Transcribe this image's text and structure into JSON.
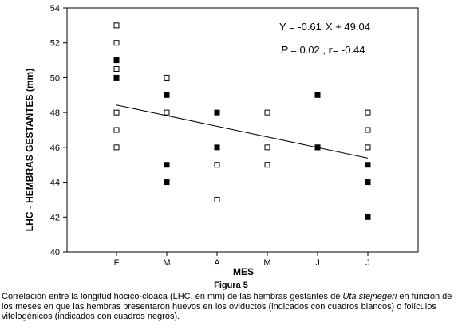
{
  "chart_data": {
    "type": "scatter",
    "title": "",
    "xlabel": "MES",
    "ylabel": "LHC - HEMBRAS GESTANTES (mm)",
    "categories": [
      "F",
      "M",
      "A",
      "M",
      "J",
      "J"
    ],
    "ylim": [
      40,
      54
    ],
    "yticks": [
      40,
      42,
      44,
      46,
      48,
      50,
      52,
      54
    ],
    "legend": "none",
    "series": [
      {
        "marker": "open-square",
        "points": [
          {
            "x": 0,
            "y": 53
          },
          {
            "x": 0,
            "y": 52
          },
          {
            "x": 0,
            "y": 50.5
          },
          {
            "x": 0,
            "y": 48
          },
          {
            "x": 0,
            "y": 47
          },
          {
            "x": 0,
            "y": 46
          },
          {
            "x": 1,
            "y": 50
          },
          {
            "x": 1,
            "y": 48
          },
          {
            "x": 2,
            "y": 45
          },
          {
            "x": 2,
            "y": 43
          },
          {
            "x": 3,
            "y": 48
          },
          {
            "x": 3,
            "y": 46
          },
          {
            "x": 3,
            "y": 45
          },
          {
            "x": 4,
            "y": 46
          },
          {
            "x": 5,
            "y": 48
          },
          {
            "x": 5,
            "y": 47
          },
          {
            "x": 5,
            "y": 46
          }
        ]
      },
      {
        "marker": "filled-square",
        "points": [
          {
            "x": 0,
            "y": 51
          },
          {
            "x": 0,
            "y": 50
          },
          {
            "x": 1,
            "y": 49
          },
          {
            "x": 1,
            "y": 45
          },
          {
            "x": 1,
            "y": 44
          },
          {
            "x": 2,
            "y": 48
          },
          {
            "x": 2,
            "y": 46
          },
          {
            "x": 4,
            "y": 49
          },
          {
            "x": 4,
            "y": 46
          },
          {
            "x": 5,
            "y": 45
          },
          {
            "x": 5,
            "y": 44
          },
          {
            "x": 5,
            "y": 42
          }
        ]
      }
    ],
    "regression": {
      "slope": -0.61,
      "intercept": 49.04,
      "x_start": 1,
      "x_end": 6
    },
    "annotations": {
      "equation_prefix": "Y = ",
      "equation_slope": "-0.61",
      "equation_x": "X + 49.04",
      "p_label": "P",
      "p_rest": " = 0.02 , ",
      "r_label": "r",
      "r_value": "= -0.44"
    },
    "grid": false
  },
  "figure_label": "Figura 5",
  "caption": {
    "before_species": "Correlación entre la longitud hocico-cloaca (LHC, en mm) de las hembras gestantes de ",
    "species": "Uta stejnegeri",
    "after_species": " en función de los meses en que las hembras presentaron huevos en los oviductos (indicados con cuadros blancos) o folículos vitelogénicos (indicados con cuadros negros)."
  }
}
